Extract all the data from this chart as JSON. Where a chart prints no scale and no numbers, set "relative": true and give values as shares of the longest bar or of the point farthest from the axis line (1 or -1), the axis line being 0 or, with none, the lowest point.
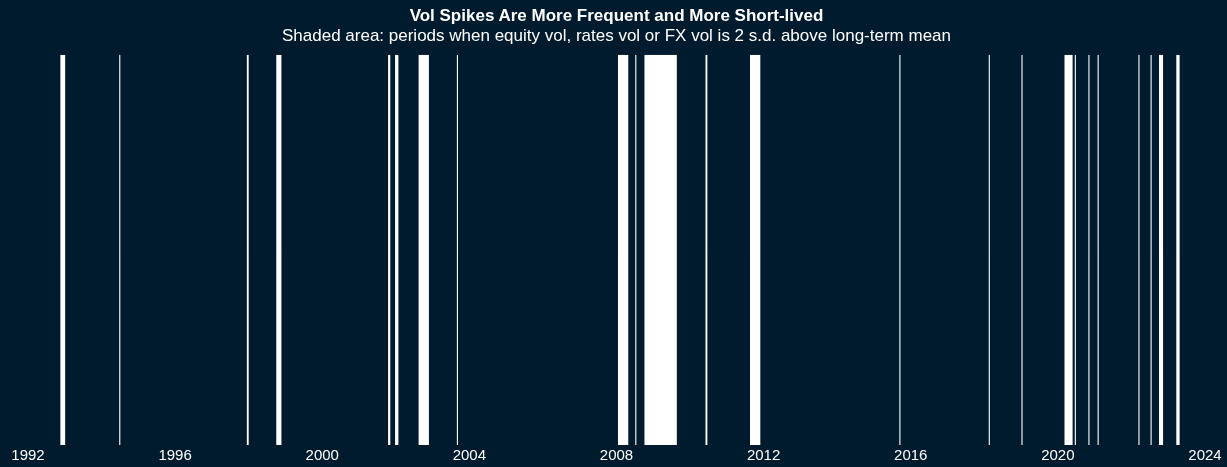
{
  "chart_data": {
    "type": "area",
    "relative": true,
    "title": "Vol Spikes Are More Frequent and More Short-lived",
    "subtitle": "Shaded area: periods when equity vol, rates vol or FX vol is 2 s.d. above long-term mean",
    "xlim": [
      1992,
      2024
    ],
    "xticks": [
      1992,
      1996,
      2000,
      2004,
      2008,
      2012,
      2016,
      2020,
      2024
    ],
    "series": [
      {
        "color": "#ffffff",
        "x": [
          1992,
          1992.88,
          1992.88,
          1993.01,
          1993.01,
          1994.48,
          1994.48,
          1994.51,
          1994.51,
          1997.95,
          1997.95,
          1998.0,
          1998.0,
          1998.75,
          1998.75,
          1998.89,
          1998.89,
          2001.79,
          2001.79,
          2001.85,
          2001.85,
          2001.98,
          2001.98,
          2002.07,
          2002.07,
          2002.62,
          2002.62,
          2002.9,
          2002.9,
          2003.66,
          2003.66,
          2003.69,
          2003.69,
          2008.04,
          2008.04,
          2008.32,
          2008.32,
          2008.51,
          2008.51,
          2008.54,
          2008.54,
          2008.76,
          2008.76,
          2009.64,
          2009.64,
          2010.42,
          2010.42,
          2010.47,
          2010.47,
          2011.63,
          2011.63,
          2011.91,
          2011.91,
          2015.69,
          2015.69,
          2015.72,
          2015.72,
          2018.12,
          2018.12,
          2018.15,
          2018.15,
          2019.01,
          2019.01,
          2019.04,
          2019.04,
          2020.18,
          2020.18,
          2020.4,
          2020.4,
          2020.46,
          2020.46,
          2020.49,
          2020.49,
          2020.83,
          2020.83,
          2020.86,
          2020.86,
          2021.08,
          2021.08,
          2021.11,
          2021.11,
          2022.19,
          2022.19,
          2022.22,
          2022.22,
          2022.52,
          2022.52,
          2022.55,
          2022.55,
          2022.75,
          2022.75,
          2022.86,
          2022.86,
          2023.22,
          2023.22,
          2023.31,
          2023.31,
          2024
        ],
        "values": [
          0,
          0,
          1,
          1,
          0,
          0,
          1,
          1,
          0,
          0,
          1,
          1,
          0,
          0,
          1,
          1,
          0,
          0,
          1,
          1,
          0,
          0,
          1,
          1,
          0,
          0,
          1,
          1,
          0,
          0,
          1,
          1,
          0,
          0,
          1,
          1,
          0,
          0,
          1,
          1,
          0,
          0,
          1,
          1,
          0,
          0,
          1,
          1,
          0,
          0,
          1,
          1,
          0,
          0,
          1,
          1,
          0,
          0,
          1,
          1,
          0,
          0,
          1,
          1,
          0,
          0,
          1,
          1,
          0,
          0,
          1,
          1,
          0,
          0,
          1,
          1,
          0,
          0,
          1,
          1,
          0,
          0,
          1,
          1,
          0,
          0,
          1,
          1,
          0,
          0,
          1,
          1,
          0,
          0,
          1,
          1,
          0,
          0
        ]
      }
    ]
  }
}
